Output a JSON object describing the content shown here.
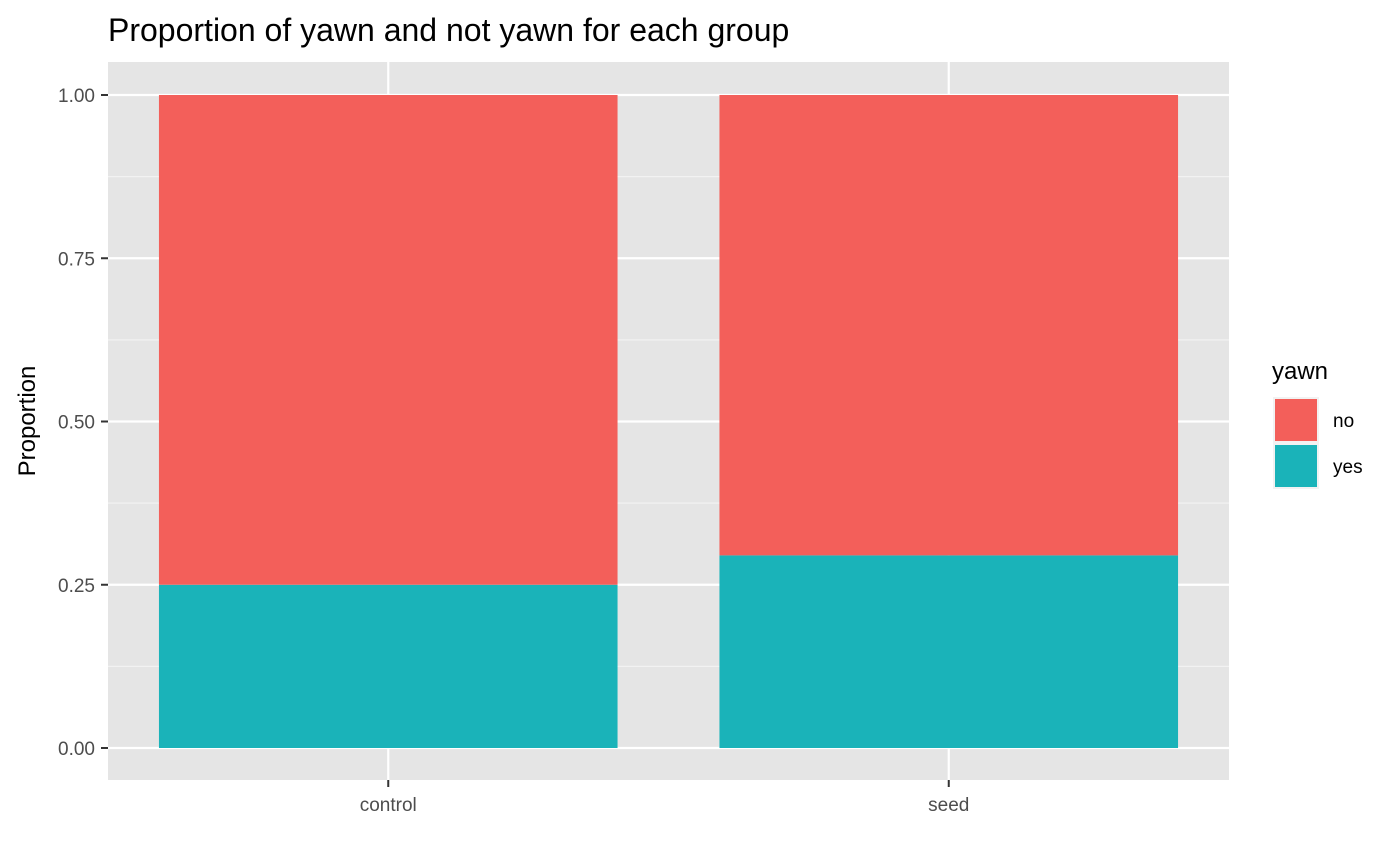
{
  "chart_data": {
    "type": "bar",
    "stacked": true,
    "title": "Proportion of yawn and not yawn for each group",
    "xlabel": "",
    "ylabel": "Proportion",
    "categories": [
      "control",
      "seed"
    ],
    "series": [
      {
        "name": "no",
        "color": "#F35F5A",
        "values": [
          0.75,
          0.705
        ]
      },
      {
        "name": "yes",
        "color": "#1AB3B9",
        "values": [
          0.25,
          0.295
        ]
      }
    ],
    "ylim": [
      0,
      1
    ],
    "yticks": [
      "0.00",
      "0.25",
      "0.50",
      "0.75",
      "1.00"
    ],
    "ytick_values": [
      0,
      0.25,
      0.5,
      0.75,
      1.0
    ],
    "grid": true,
    "panel_background": "#E5E5E5",
    "legend": {
      "title": "yawn",
      "position": "right",
      "items": [
        "no",
        "yes"
      ]
    }
  }
}
